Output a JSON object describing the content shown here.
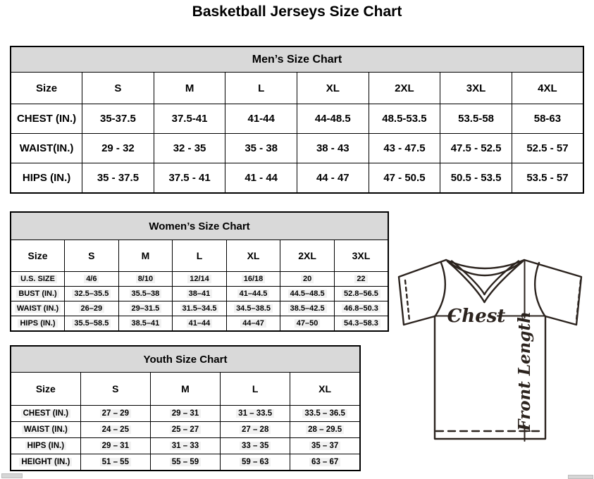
{
  "page": {
    "title": "Basketball Jerseys Size Chart"
  },
  "tables": {
    "men": {
      "title": "Men’s Size Chart",
      "columns": [
        "Size",
        "S",
        "M",
        "L",
        "XL",
        "2XL",
        "3XL",
        "4XL"
      ],
      "rows": [
        {
          "label": "CHEST (IN.)",
          "values": [
            "35-37.5",
            "37.5-41",
            "41-44",
            "44-48.5",
            "48.5-53.5",
            "53.5-58",
            "58-63"
          ]
        },
        {
          "label": "WAIST(IN.)",
          "values": [
            "29 - 32",
            "32 - 35",
            "35 - 38",
            "38 - 43",
            "43 - 47.5",
            "47.5 - 52.5",
            "52.5 - 57"
          ]
        },
        {
          "label": "HIPS (IN.)",
          "values": [
            "35 - 37.5",
            "37.5 - 41",
            "41 - 44",
            "44 - 47",
            "47 - 50.5",
            "50.5 - 53.5",
            "53.5 - 57"
          ]
        }
      ]
    },
    "women": {
      "title": "Women’s Size Chart",
      "columns": [
        "Size",
        "S",
        "M",
        "L",
        "XL",
        "2XL",
        "3XL"
      ],
      "rows": [
        {
          "label": "U.S. SIZE",
          "values": [
            "4/6",
            "8/10",
            "12/14",
            "16/18",
            "20",
            "22"
          ]
        },
        {
          "label": "BUST (IN.)",
          "values": [
            "32.5–35.5",
            "35.5–38",
            "38–41",
            "41–44.5",
            "44.5–48.5",
            "52.8–56.5"
          ]
        },
        {
          "label": "WAIST (IN.)",
          "values": [
            "26–29",
            "29–31.5",
            "31.5–34.5",
            "34.5–38.5",
            "38.5–42.5",
            "46.8–50.3"
          ]
        },
        {
          "label": "HIPS (IN.)",
          "values": [
            "35.5–58.5",
            "38.5–41",
            "41–44",
            "44–47",
            "47–50",
            "54.3–58.3"
          ]
        }
      ]
    },
    "youth": {
      "title": "Youth Size Chart",
      "columns": [
        "Size",
        "S",
        "M",
        "L",
        "XL"
      ],
      "rows": [
        {
          "label": "CHEST (IN.)",
          "values": [
            "27 – 29",
            "29 – 31",
            "31 – 33.5",
            "33.5 – 36.5"
          ]
        },
        {
          "label": "WAIST (IN.)",
          "values": [
            "24 – 25",
            "25 – 27",
            "27 – 28",
            "28 – 29.5"
          ]
        },
        {
          "label": "HIPS (IN.)",
          "values": [
            "29 – 31",
            "31 – 33",
            "33 – 35",
            "35 – 37"
          ]
        },
        {
          "label": "HEIGHT (IN.)",
          "values": [
            "51 – 55",
            "55 – 59",
            "59 – 63",
            "63 – 67"
          ]
        }
      ]
    }
  },
  "diagram": {
    "chest_label": "Chest",
    "front_length_label": "Front Length"
  },
  "colors": {
    "table_title_bg": "#d9d9d9",
    "table_border": "#000000",
    "text": "#000000",
    "jersey_line": "#2b231e",
    "highlight": "#f1f1f1"
  }
}
